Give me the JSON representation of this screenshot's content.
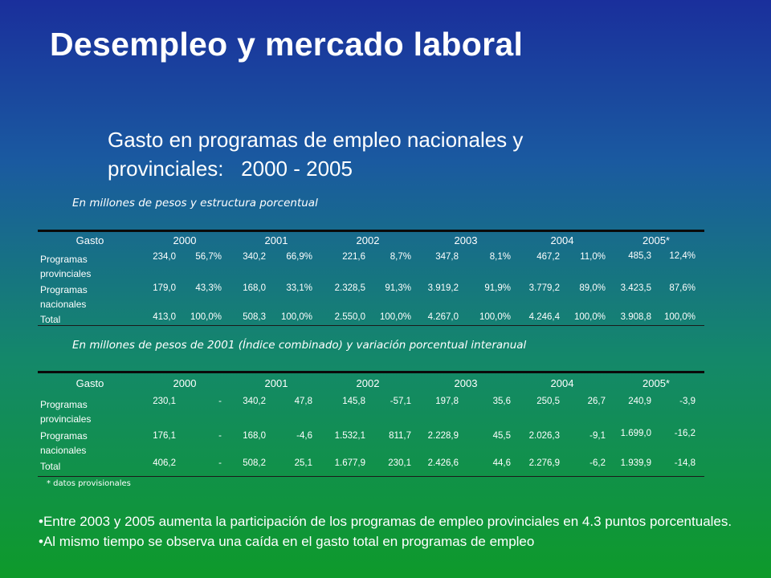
{
  "title": "Desempleo y mercado laboral",
  "subtitle": {
    "line1": "Gasto en programas de empleo nacionales y",
    "line2": "provinciales:   2000 - 2005"
  },
  "table1": {
    "caption": "En millones de pesos y estructura porcentual",
    "header": [
      "Gasto",
      "2000",
      "2001",
      "2002",
      "2003",
      "2004",
      "2005*"
    ],
    "rows": [
      {
        "label": [
          "Programas",
          "provinciales"
        ],
        "values": [
          "234,0",
          "56,7%",
          "340,2",
          "66,9%",
          "221,6",
          "8,7%",
          "347,8",
          "8,1%",
          "467,2",
          "11,0%",
          "485,3",
          "12,4%"
        ]
      },
      {
        "label": [
          "Programas",
          "nacionales"
        ],
        "values": [
          "179,0",
          "43,3%",
          "168,0",
          "33,1%",
          "2.328,5",
          "91,3%",
          "3.919,2",
          "91,9%",
          "3.779,2",
          "89,0%",
          "3.423,5",
          "87,6%"
        ]
      },
      {
        "label": [
          "Total"
        ],
        "values": [
          "413,0",
          "100,0%",
          "508,3",
          "100,0%",
          "2.550,0",
          "100,0%",
          "4.267,0",
          "100,0%",
          "4.246,4",
          "100,0%",
          "3.908,8",
          "100,0%"
        ]
      }
    ]
  },
  "table2": {
    "caption": "En millones de pesos de 2001 (Índice combinado) y variación porcentual interanual",
    "header": [
      "Gasto",
      "2000",
      "2001",
      "2002",
      "2003",
      "2004",
      "2005*"
    ],
    "rows": [
      {
        "label": [
          "Programas",
          "provinciales"
        ],
        "values": [
          "230,1",
          "-",
          "340,2",
          "47,8",
          "145,8",
          "-57,1",
          "197,8",
          "35,6",
          "250,5",
          "26,7",
          "240,9",
          "-3,9"
        ]
      },
      {
        "label": [
          "Programas",
          "nacionales"
        ],
        "values": [
          "176,1",
          "-",
          "168,0",
          "-4,6",
          "1.532,1",
          "811,7",
          "2.228,9",
          "45,5",
          "2.026,3",
          "-9,1",
          "1.699,0",
          "-16,2"
        ]
      },
      {
        "label": [
          "Total"
        ],
        "values": [
          "406,2",
          "-",
          "508,2",
          "25,1",
          "1.677,9",
          "230,1",
          "2.426,6",
          "44,6",
          "2.276,9",
          "-6,2",
          "1.939,9",
          "-14,8"
        ]
      }
    ]
  },
  "footnote": "* datos provisionales",
  "bullets": [
    "•Entre 2003 y 2005 aumenta la participación de los programas de empleo provinciales en 4.3 puntos porcentuales.",
    "•Al mismo tiempo se observa una caída en el gasto total en programas de empleo"
  ]
}
